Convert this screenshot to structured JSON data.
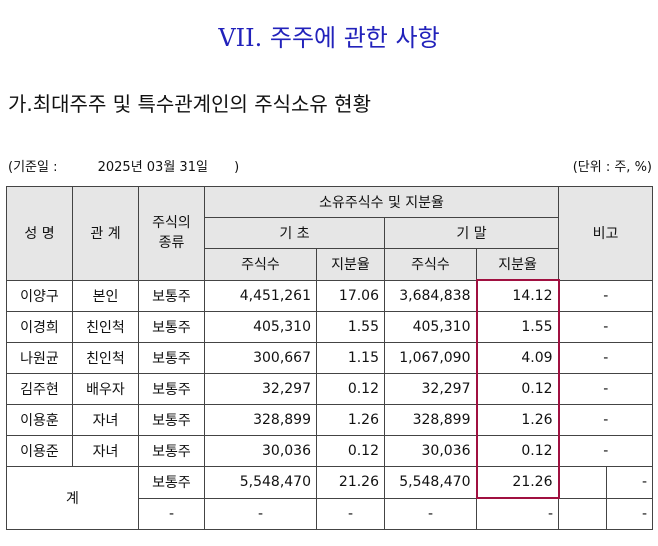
{
  "page": {
    "title": "VII. 주주에 관한 사항",
    "subtitle": "가.최대주주 및 특수관계인의 주식소유 현황",
    "basis_prefix": "(기준일 :",
    "basis_date": "2025년 03월 31일",
    "basis_suffix": ")",
    "unit": "(단위 : 주, %)"
  },
  "table": {
    "headers": {
      "name": "성 명",
      "relation": "관 계",
      "stock_type": "주식의\n종류",
      "ownership": "소유주식수 및 지분율",
      "begin": "기 초",
      "end": "기 말",
      "shares": "주식수",
      "ratio": "지분율",
      "remarks": "비고"
    },
    "rows": [
      {
        "name": "이양구",
        "relation": "본인",
        "type": "보통주",
        "begin_shares": "4,451,261",
        "begin_ratio": "17.06",
        "end_shares": "3,684,838",
        "end_ratio": "14.12",
        "remarks": "-"
      },
      {
        "name": "이경희",
        "relation": "친인척",
        "type": "보통주",
        "begin_shares": "405,310",
        "begin_ratio": "1.55",
        "end_shares": "405,310",
        "end_ratio": "1.55",
        "remarks": "-"
      },
      {
        "name": "나원균",
        "relation": "친인척",
        "type": "보통주",
        "begin_shares": "300,667",
        "begin_ratio": "1.15",
        "end_shares": "1,067,090",
        "end_ratio": "4.09",
        "remarks": "-"
      },
      {
        "name": "김주현",
        "relation": "배우자",
        "type": "보통주",
        "begin_shares": "32,297",
        "begin_ratio": "0.12",
        "end_shares": "32,297",
        "end_ratio": "0.12",
        "remarks": "-"
      },
      {
        "name": "이용훈",
        "relation": "자녀",
        "type": "보통주",
        "begin_shares": "328,899",
        "begin_ratio": "1.26",
        "end_shares": "328,899",
        "end_ratio": "1.26",
        "remarks": "-"
      },
      {
        "name": "이용준",
        "relation": "자녀",
        "type": "보통주",
        "begin_shares": "30,036",
        "begin_ratio": "0.12",
        "end_shares": "30,036",
        "end_ratio": "0.12",
        "remarks": "-"
      }
    ],
    "total": {
      "label": "계",
      "row1": {
        "type": "보통주",
        "begin_shares": "5,548,470",
        "begin_ratio": "21.26",
        "end_shares": "5,548,470",
        "end_ratio": "21.26",
        "remarks": "-"
      },
      "row2": {
        "type": "-",
        "begin_shares": "-",
        "begin_ratio": "-",
        "end_shares": "-",
        "end_ratio": "-",
        "remarks": "-"
      }
    }
  },
  "colors": {
    "title": "#2222bb",
    "header_bg": "#e6e6e6",
    "highlight_border": "#a01040"
  }
}
